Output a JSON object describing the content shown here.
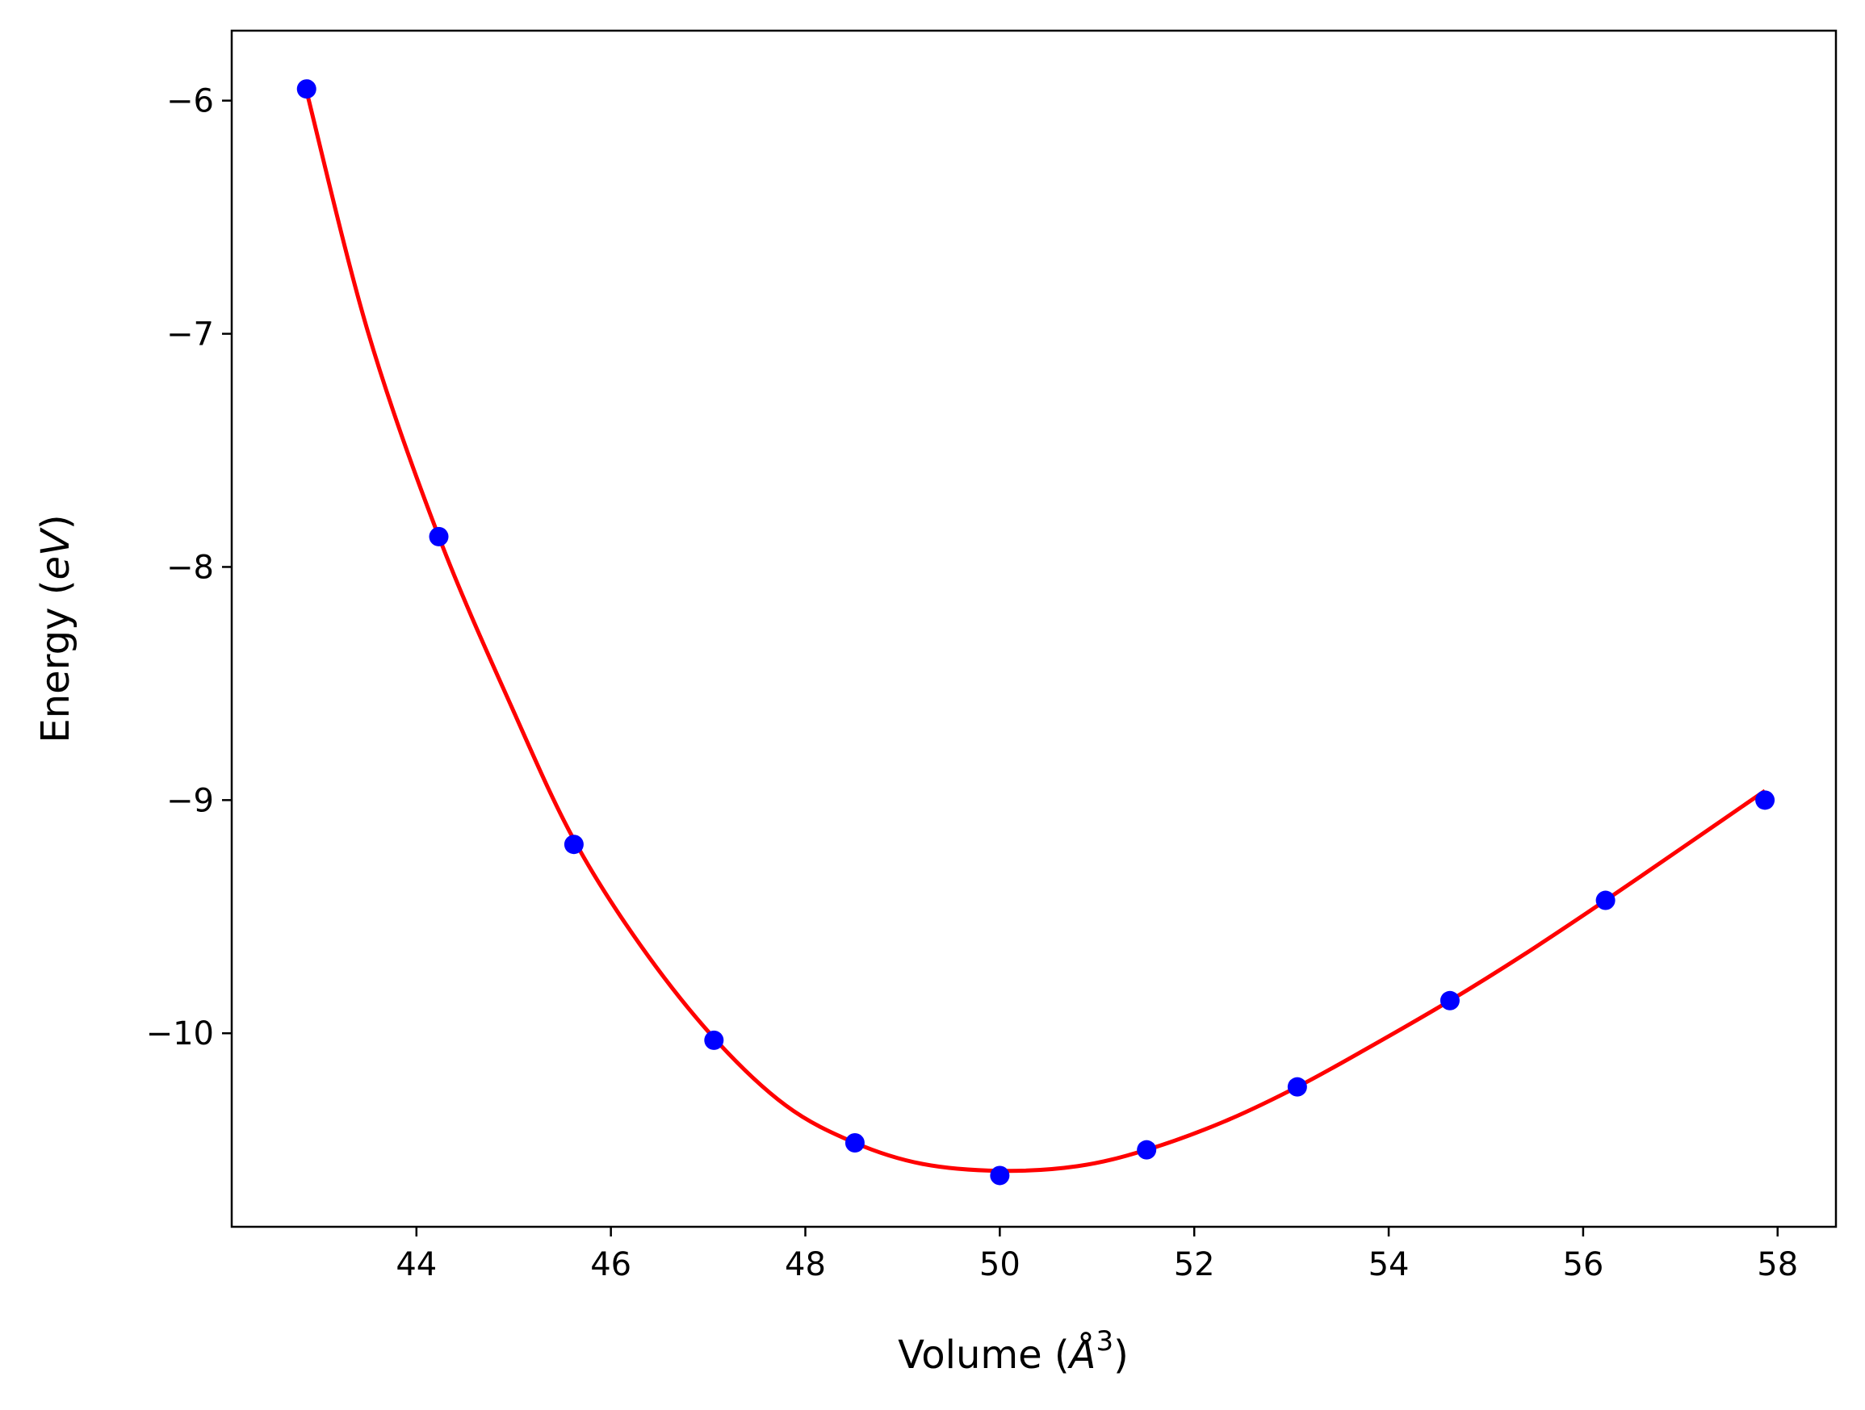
{
  "chart_data": {
    "type": "scatter",
    "title": "",
    "xlabel_text": "Volume (",
    "xlabel_unit": "Å",
    "xlabel_exp": "3",
    "xlabel_close": ")",
    "ylabel_text": "Energy (",
    "ylabel_unit": "eV",
    "ylabel_close": ")",
    "xlim": [
      42.1,
      58.6
    ],
    "ylim": [
      -10.83,
      -5.7
    ],
    "x_ticks": [
      44,
      46,
      48,
      50,
      52,
      54,
      56,
      58
    ],
    "x_tick_labels": [
      "44",
      "46",
      "48",
      "50",
      "52",
      "54",
      "56",
      "58"
    ],
    "y_ticks": [
      -6,
      -7,
      -8,
      -9,
      -10
    ],
    "y_tick_labels": [
      "−6",
      "−7",
      "−8",
      "−9",
      "−10"
    ],
    "grid": false,
    "colors": {
      "points": "#0000ff",
      "fit": "#ff0000",
      "axes": "#000000"
    },
    "series": [
      {
        "kind": "points",
        "x": [
          42.87,
          44.23,
          45.62,
          47.06,
          48.51,
          50.0,
          51.51,
          53.06,
          54.63,
          56.23,
          57.87
        ],
        "y": [
          -5.95,
          -7.87,
          -9.19,
          -10.03,
          -10.47,
          -10.61,
          -10.5,
          -10.23,
          -9.86,
          -9.43,
          -9.0
        ]
      },
      {
        "kind": "fit-line",
        "x": [
          42.87,
          43.5,
          44.23,
          45.0,
          45.62,
          46.3,
          47.06,
          47.8,
          48.51,
          49.2,
          50.0,
          50.8,
          51.51,
          52.3,
          53.06,
          53.8,
          54.63,
          55.4,
          56.23,
          57.0,
          57.87
        ],
        "y": [
          -5.96,
          -6.99,
          -7.87,
          -8.62,
          -9.17,
          -9.62,
          -10.02,
          -10.31,
          -10.47,
          -10.56,
          -10.59,
          -10.57,
          -10.5,
          -10.38,
          -10.23,
          -10.06,
          -9.86,
          -9.66,
          -9.43,
          -9.21,
          -8.96
        ]
      }
    ]
  }
}
